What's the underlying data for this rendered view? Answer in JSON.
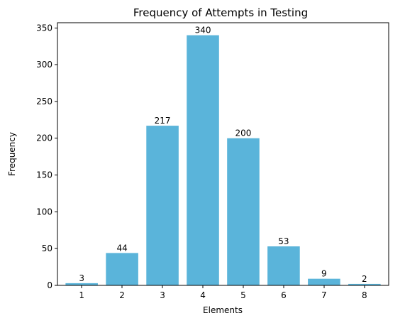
{
  "chart_data": {
    "type": "bar",
    "title": "Frequency of Attempts in Testing",
    "xlabel": "Elements",
    "ylabel": "Frequency",
    "categories": [
      "1",
      "2",
      "3",
      "4",
      "5",
      "6",
      "7",
      "8"
    ],
    "values": [
      3,
      44,
      217,
      340,
      200,
      53,
      9,
      2
    ],
    "data_labels": [
      "3",
      "44",
      "217",
      "340",
      "200",
      "53",
      "9",
      "2"
    ],
    "ylim": [
      0,
      357
    ],
    "yticks": [
      0,
      50,
      100,
      150,
      200,
      250,
      300,
      350
    ],
    "grid": false,
    "bar_color": "#5ab4da"
  }
}
